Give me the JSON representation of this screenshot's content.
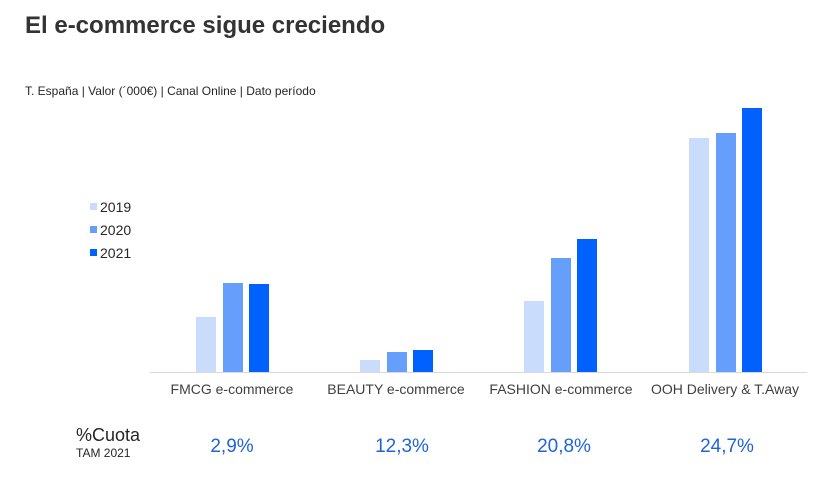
{
  "header": {
    "title": "El e-commerce sigue creciendo",
    "subtitle": "T. España | Valor (´000€) |  Canal Online | Dato período"
  },
  "colors": {
    "2019": "#c9dcfb",
    "2020": "#659ffb",
    "2021": "#0061fe",
    "axis": "#d9d9d9",
    "share_text": "#1f64d8"
  },
  "legend": [
    {
      "label": "2019",
      "color": "#c9dcfb"
    },
    {
      "label": "2020",
      "color": "#659ffb"
    },
    {
      "label": "2021",
      "color": "#0061fe"
    }
  ],
  "share_row": {
    "title": "%Cuota",
    "subtitle": "TAM 2021",
    "values": [
      "2,9%",
      "12,3%",
      "20,8%",
      "24,7%"
    ]
  },
  "chart_data": {
    "type": "bar",
    "title": "El e-commerce sigue creciendo",
    "subtitle": "T. España | Valor (´000€) |  Canal Online | Dato período",
    "xlabel": "",
    "ylabel": "",
    "grid": false,
    "legend_position": "left",
    "y_axis_visible": false,
    "note": "No y-axis ticks shown; values are relative bar heights in pixels above baseline (max ≈ 264).",
    "categories": [
      "FMCG e-commerce",
      "BEAUTY e-commerce",
      "FASHION e-commerce",
      "OOH Delivery & T.Away"
    ],
    "series": [
      {
        "name": "2019",
        "values": [
          55,
          12,
          71,
          234
        ]
      },
      {
        "name": "2020",
        "values": [
          89,
          20,
          114,
          239
        ]
      },
      {
        "name": "2021",
        "values": [
          88,
          22,
          133,
          264
        ]
      }
    ],
    "annotations": {
      "label": "%Cuota TAM 2021",
      "values": [
        "2,9%",
        "12,3%",
        "20,8%",
        "24,7%"
      ]
    }
  }
}
